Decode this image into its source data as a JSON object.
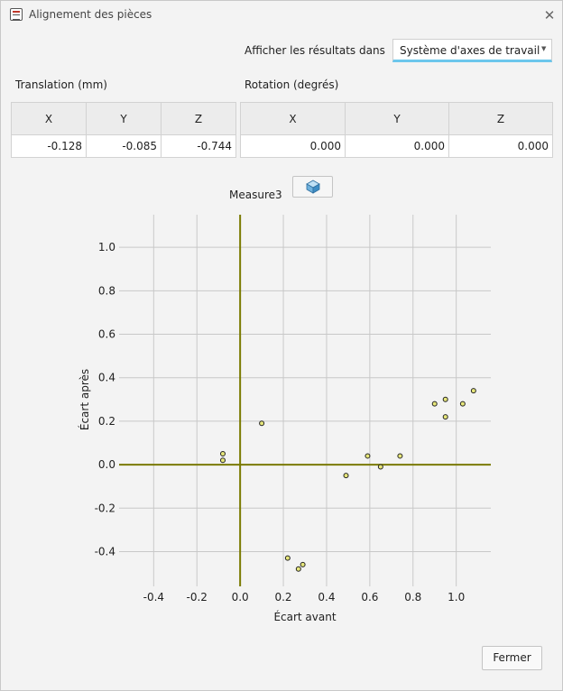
{
  "window": {
    "title": "Alignement des pièces"
  },
  "results": {
    "label": "Afficher les résultats dans",
    "selected": "Système d'axes de travail"
  },
  "translation": {
    "label": "Translation (mm)",
    "headers": [
      "X",
      "Y",
      "Z"
    ],
    "values": [
      "-0.128",
      "-0.085",
      "-0.744"
    ]
  },
  "rotation": {
    "label": "Rotation (degrés)",
    "headers": [
      "X",
      "Y",
      "Z"
    ],
    "values": [
      "0.000",
      "0.000",
      "0.000"
    ]
  },
  "measure": {
    "label": "Measure3"
  },
  "buttons": {
    "close": "Fermer"
  },
  "colors": {
    "axis": "#7a7a00",
    "point_fill": "#e6e67a",
    "grid": "#c8c8c8"
  },
  "chart_data": {
    "type": "scatter",
    "xlabel": "Écart avant",
    "ylabel": "Écart après",
    "xlim": [
      -0.56,
      1.16
    ],
    "ylim": [
      -0.56,
      1.15
    ],
    "xticks": [
      -0.4,
      -0.2,
      0.0,
      0.2,
      0.4,
      0.6,
      0.8,
      1.0
    ],
    "yticks": [
      -0.4,
      -0.2,
      0.0,
      0.2,
      0.4,
      0.6,
      0.8,
      1.0
    ],
    "grid": true,
    "points": [
      {
        "x": -0.08,
        "y": 0.05
      },
      {
        "x": -0.08,
        "y": 0.02
      },
      {
        "x": 0.1,
        "y": 0.19
      },
      {
        "x": 0.22,
        "y": -0.43
      },
      {
        "x": 0.27,
        "y": -0.48
      },
      {
        "x": 0.29,
        "y": -0.46
      },
      {
        "x": 0.49,
        "y": -0.05
      },
      {
        "x": 0.59,
        "y": 0.04
      },
      {
        "x": 0.65,
        "y": -0.01
      },
      {
        "x": 0.74,
        "y": 0.04
      },
      {
        "x": 0.9,
        "y": 0.28
      },
      {
        "x": 0.95,
        "y": 0.3
      },
      {
        "x": 0.95,
        "y": 0.22
      },
      {
        "x": 1.03,
        "y": 0.28
      },
      {
        "x": 1.08,
        "y": 0.34
      }
    ]
  }
}
